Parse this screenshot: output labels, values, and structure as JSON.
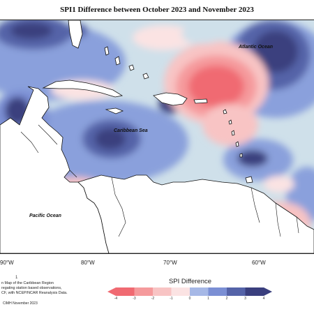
{
  "title": "SPI1 Difference between October 2023 and November 2023",
  "oceans": {
    "atlantic": "Atlantic Ocean",
    "caribbean": "Caribbean Sea",
    "pacific": "Pacific Ocean"
  },
  "longitudes": [
    "90°W",
    "80°W",
    "70°W",
    "60°W"
  ],
  "footnote": {
    "line1": "n Map of the Caribbean Region",
    "line2": "regating station based observations,",
    "line3": "CF, with NCEP/NCAR Reanalysis Data."
  },
  "credit": "CIMH November 2023",
  "mark": "1",
  "legend": {
    "title": "SPI Difference",
    "ticks": [
      "-4",
      "-3",
      "-2",
      "-1",
      "0",
      "1",
      "2",
      "3",
      "4"
    ],
    "colors": [
      "#f06a72",
      "#f59a9c",
      "#f8c4c4",
      "#fbe3e3",
      "#cfe0ea",
      "#a6b8e6",
      "#7b8fd4",
      "#5563a8",
      "#3a3f7e"
    ]
  }
}
